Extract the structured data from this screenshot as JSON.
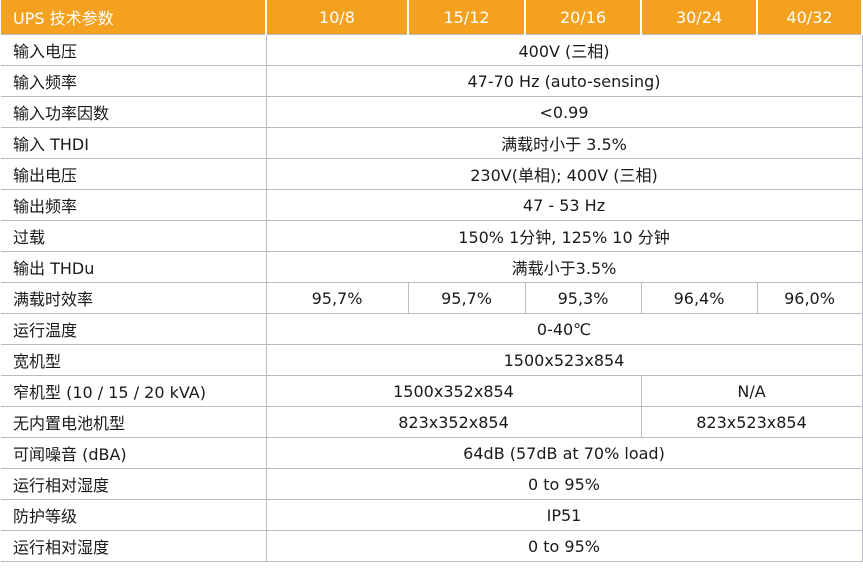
{
  "header": {
    "title": "UPS 技术参数",
    "models": [
      "10/8",
      "15/12",
      "20/16",
      "30/24",
      "40/32"
    ]
  },
  "rows": [
    {
      "label": "输入电压",
      "value": "400V (三相)"
    },
    {
      "label": "输入频率",
      "value": "47-70 Hz (auto-sensing)"
    },
    {
      "label": "输入功率因数",
      "value": "<0.99"
    },
    {
      "label": "输入 THDI",
      "value": "满载时小于 3.5%"
    },
    {
      "label": "输出电压",
      "value": "230V(单相); 400V (三相)"
    },
    {
      "label": "输出频率",
      "value": "47 - 53 Hz"
    },
    {
      "label": "过载",
      "value": "150% 1分钟, 125% 10 分钟"
    },
    {
      "label": "输出 THDu",
      "value": "满载小于3.5%"
    },
    {
      "label": "满载时效率",
      "values": [
        "95,7%",
        "95,7%",
        "95,3%",
        "96,4%",
        "96,0%"
      ]
    },
    {
      "label": "运行温度",
      "value": "0-40℃"
    },
    {
      "label": "宽机型",
      "value": "1500x523x854"
    },
    {
      "label": "窄机型 (10 / 15 / 20 kVA)",
      "left": "1500x352x854",
      "right": "N/A"
    },
    {
      "label": "无内置电池机型",
      "left": "823x352x854",
      "right": "823x523x854"
    },
    {
      "label": "可闻噪音 (dBA)",
      "value": "64dB (57dB at 70% load)"
    },
    {
      "label": "运行相对湿度",
      "value": "0 to 95%"
    },
    {
      "label": "防护等级",
      "value": "IP51"
    },
    {
      "label": "运行相对湿度",
      "value": "0 to 95%"
    }
  ]
}
